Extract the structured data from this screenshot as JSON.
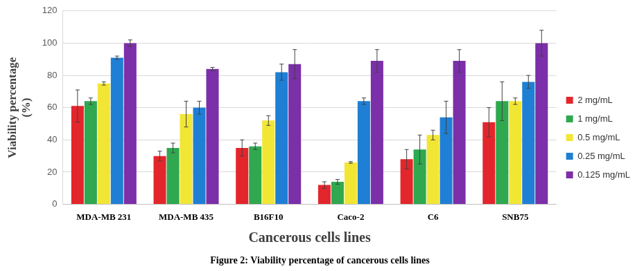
{
  "chart_data": {
    "type": "bar",
    "title": "Figure 2: Viability percentage of cancerous cells lines",
    "x_label": "Cancerous cells lines",
    "y_label": [
      "Viability percentage",
      "(%)"
    ],
    "categories": [
      "MDA-MB 231",
      "MDA-MB 435",
      "B16F10",
      "Caco-2",
      "C6",
      "SNB75"
    ],
    "series": [
      {
        "name": "2 mg/mL",
        "color": "#e3262b",
        "values": [
          61,
          30,
          35,
          12,
          28,
          51
        ],
        "errors": [
          10,
          3,
          5,
          2,
          6,
          9
        ]
      },
      {
        "name": "1 mg/mL",
        "color": "#2fa84f",
        "values": [
          64,
          35,
          36,
          14,
          34,
          64
        ],
        "errors": [
          2,
          3,
          2,
          1.5,
          9,
          12
        ]
      },
      {
        "name": "0.5 mg/mL",
        "color": "#f2e635",
        "values": [
          75,
          56,
          52,
          26,
          43,
          64
        ],
        "errors": [
          1,
          8,
          3,
          0.5,
          3,
          2
        ]
      },
      {
        "name": "0.25 mg/mL",
        "color": "#1f7fd4",
        "values": [
          91,
          60,
          82,
          64,
          54,
          76
        ],
        "errors": [
          1,
          4,
          5,
          2,
          10,
          4
        ]
      },
      {
        "name": "0.125 mg/mL",
        "color": "#7b2fa8",
        "values": [
          100,
          84,
          87,
          89,
          89,
          100
        ],
        "errors": [
          2,
          1,
          9,
          7,
          7,
          8
        ]
      }
    ],
    "ylim": [
      0,
      120
    ],
    "yticks": [
      0,
      20,
      40,
      60,
      80,
      100,
      120
    ],
    "grid": true,
    "legend": "right"
  }
}
